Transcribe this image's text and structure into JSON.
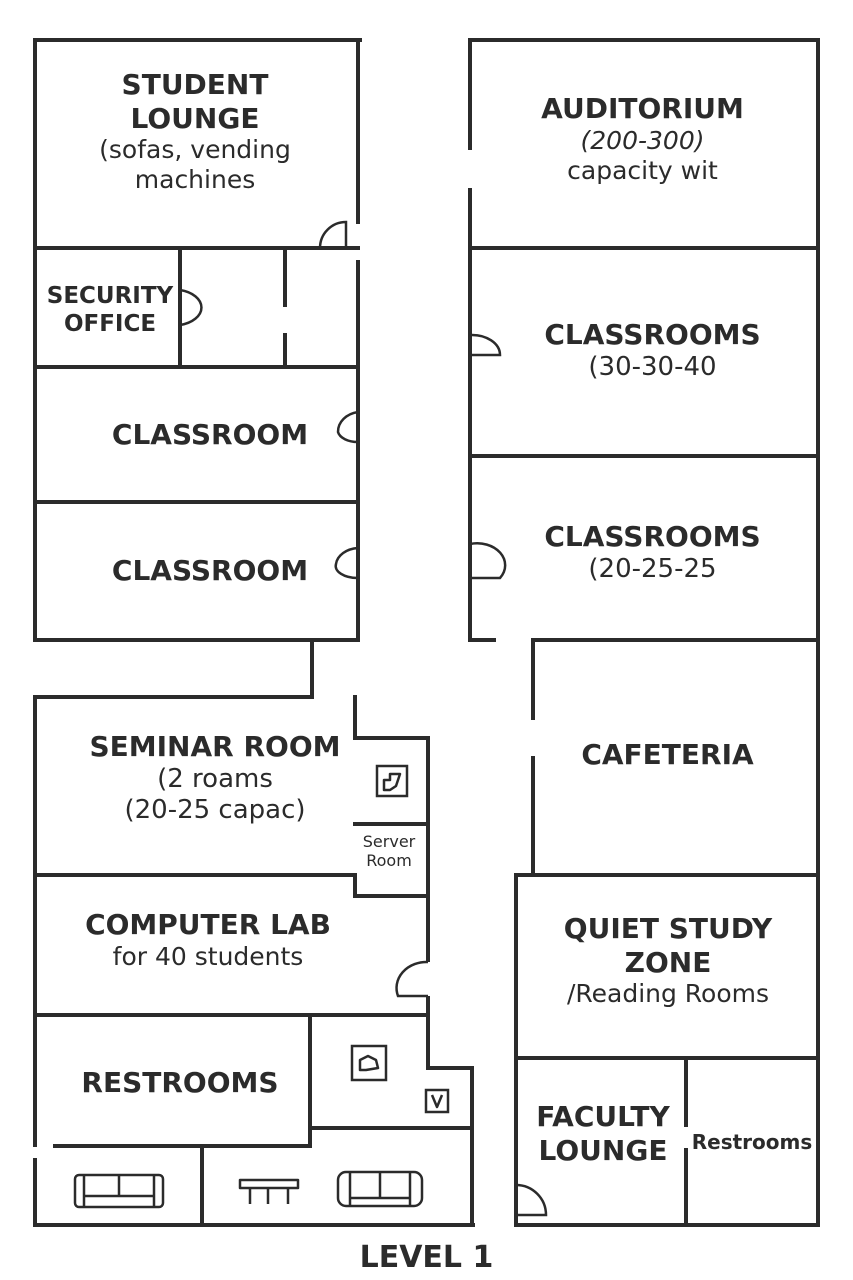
{
  "plan": {
    "level": "LEVEL 1",
    "rooms": {
      "student_lounge": {
        "title1": "STUDENT",
        "title2": "LOUNGE",
        "sub1": "(sofas, vending",
        "sub2": "machines"
      },
      "auditorium": {
        "title": "AUDITORIUM",
        "sub1": "(200-300)",
        "sub2": "capacity wit"
      },
      "security_office": {
        "title1": "SECURITY",
        "title2": "OFFICE"
      },
      "classrooms_a": {
        "title": "CLASSROOMS",
        "sub": "(30-30-40"
      },
      "classroom_1": {
        "title": "CLASSROOM"
      },
      "classroom_2": {
        "title": "CLASSROOM"
      },
      "classrooms_b": {
        "title": "CLASSROOMS",
        "sub": "(20-25-25"
      },
      "seminar_room": {
        "title": "SEMINAR ROOM",
        "sub1": "(2 roams",
        "sub2": "(20-25 capac)"
      },
      "cafeteria": {
        "title": "CAFETERIA"
      },
      "server_room": {
        "title1": "Server",
        "title2": "Room"
      },
      "computer_lab": {
        "title": "COMPUTER LAB",
        "sub": "for 40 students"
      },
      "quiet_study": {
        "title1": "QUIET STUDY",
        "title2": "ZONE",
        "sub": "/Reading Rooms"
      },
      "restrooms_west": {
        "title": "RESTROOMS"
      },
      "faculty_lounge": {
        "title1": "FACULTY",
        "title2": "LOUNGE"
      },
      "restrooms_east": {
        "title": "Restrooms"
      }
    },
    "icons": [
      "sofa-icon",
      "table-icon",
      "couch-icon",
      "server-sign-icon",
      "utility-sign-icon",
      "small-sign-icon"
    ]
  }
}
